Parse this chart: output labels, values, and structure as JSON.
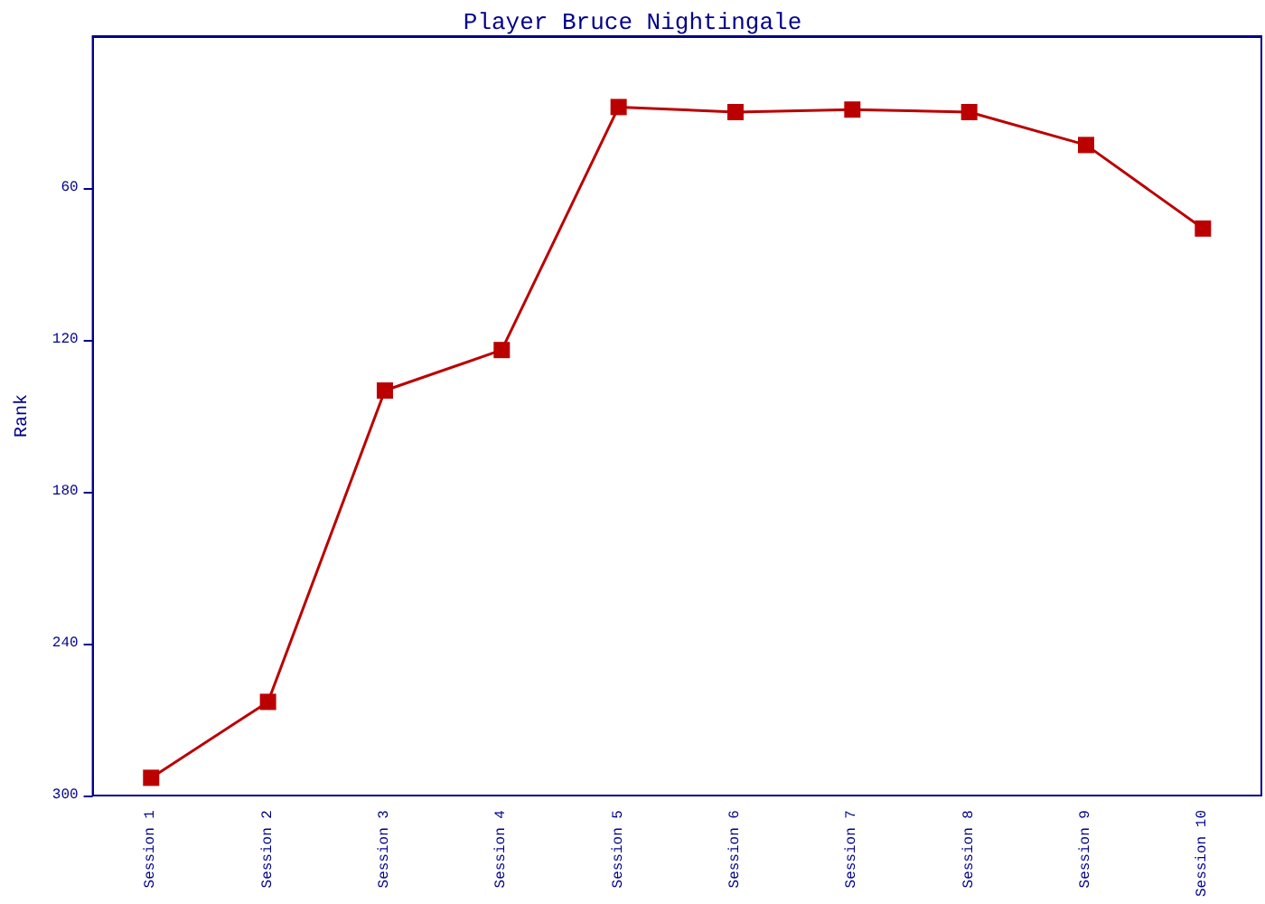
{
  "chart_data": {
    "type": "line",
    "title": "Player Bruce Nightingale",
    "ylabel": "Rank",
    "categories": [
      "Session 1",
      "Session 2",
      "Session 3",
      "Session 4",
      "Session 5",
      "Session 6",
      "Session 7",
      "Session 8",
      "Session 9",
      "Session 10"
    ],
    "series": [
      {
        "color": "#bb0000",
        "values": [
          293,
          263,
          140,
          124,
          28,
          30,
          29,
          30,
          43,
          76
        ]
      }
    ],
    "ylim": [
      300,
      0
    ],
    "yticks": [
      60,
      120,
      180,
      240,
      300
    ],
    "grid": false,
    "marker": "square",
    "line_style": "solid"
  }
}
